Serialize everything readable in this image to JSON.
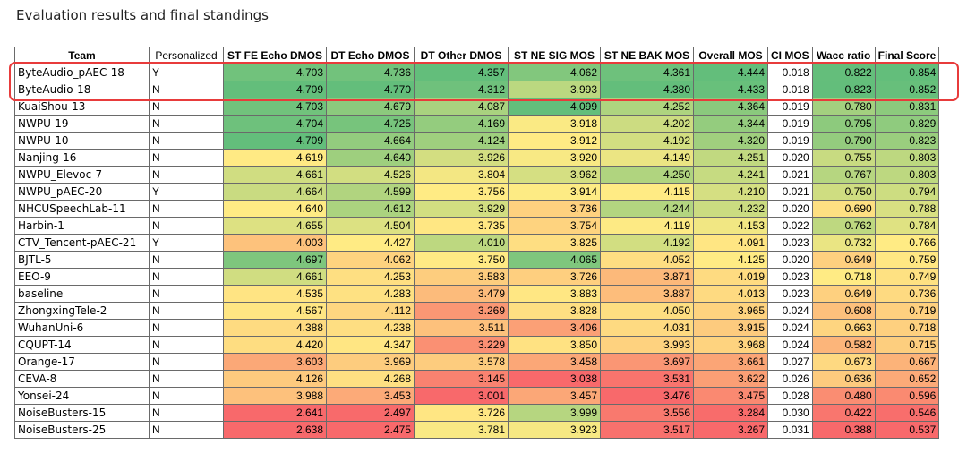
{
  "caption": "Evaluation results and final standings",
  "table": {
    "headers": [
      "Team",
      "Personalized",
      "ST FE Echo DMOS",
      "DT Echo DMOS",
      "DT Other DMOS",
      "ST NE SIG MOS",
      "ST NE BAK MOS",
      "Overall MOS",
      "CI MOS",
      "Wacc ratio",
      "Final Score"
    ],
    "rows": [
      [
        "ByteAudio_pAEC-18",
        "Y",
        "4.703",
        "4.736",
        "4.357",
        "4.062",
        "4.361",
        "4.444",
        "0.018",
        "0.822",
        "0.854"
      ],
      [
        "ByteAudio-18",
        "N",
        "4.709",
        "4.770",
        "4.312",
        "3.993",
        "4.380",
        "4.433",
        "0.018",
        "0.823",
        "0.852"
      ],
      [
        "KuaiShou-13",
        "N",
        "4.703",
        "4.679",
        "4.087",
        "4.099",
        "4.252",
        "4.364",
        "0.019",
        "0.780",
        "0.831"
      ],
      [
        "NWPU-19",
        "N",
        "4.704",
        "4.725",
        "4.169",
        "3.918",
        "4.202",
        "4.344",
        "0.019",
        "0.795",
        "0.829"
      ],
      [
        "NWPU-10",
        "N",
        "4.709",
        "4.664",
        "4.124",
        "3.912",
        "4.192",
        "4.320",
        "0.019",
        "0.790",
        "0.823"
      ],
      [
        "Nanjing-16",
        "N",
        "4.619",
        "4.640",
        "3.926",
        "3.920",
        "4.149",
        "4.251",
        "0.020",
        "0.755",
        "0.803"
      ],
      [
        "NWPU_Elevoc-7",
        "N",
        "4.661",
        "4.526",
        "3.804",
        "3.962",
        "4.250",
        "4.241",
        "0.021",
        "0.767",
        "0.803"
      ],
      [
        "NWPU_pAEC-20",
        "Y",
        "4.664",
        "4.599",
        "3.756",
        "3.914",
        "4.115",
        "4.210",
        "0.021",
        "0.750",
        "0.794"
      ],
      [
        "NHCUSpeechLab-11",
        "N",
        "4.640",
        "4.612",
        "3.929",
        "3.736",
        "4.244",
        "4.232",
        "0.020",
        "0.690",
        "0.788"
      ],
      [
        "Harbin-1",
        "N",
        "4.655",
        "4.504",
        "3.735",
        "3.754",
        "4.119",
        "4.153",
        "0.022",
        "0.762",
        "0.784"
      ],
      [
        "CTV_Tencent-pAEC-21",
        "Y",
        "4.003",
        "4.427",
        "4.010",
        "3.825",
        "4.192",
        "4.091",
        "0.023",
        "0.732",
        "0.766"
      ],
      [
        "BJTL-5",
        "N",
        "4.697",
        "4.062",
        "3.750",
        "4.065",
        "4.052",
        "4.125",
        "0.020",
        "0.649",
        "0.759"
      ],
      [
        "EEO-9",
        "N",
        "4.661",
        "4.253",
        "3.583",
        "3.726",
        "3.871",
        "4.019",
        "0.023",
        "0.718",
        "0.749"
      ],
      [
        "baseline",
        "N",
        "4.535",
        "4.283",
        "3.479",
        "3.883",
        "3.887",
        "4.013",
        "0.023",
        "0.649",
        "0.736"
      ],
      [
        "ZhongxingTele-2",
        "N",
        "4.567",
        "4.112",
        "3.269",
        "3.828",
        "4.050",
        "3.965",
        "0.024",
        "0.608",
        "0.719"
      ],
      [
        "WuhanUni-6",
        "N",
        "4.388",
        "4.238",
        "3.511",
        "3.406",
        "4.031",
        "3.915",
        "0.024",
        "0.663",
        "0.718"
      ],
      [
        "CQUPT-14",
        "N",
        "4.420",
        "4.347",
        "3.229",
        "3.850",
        "3.993",
        "3.968",
        "0.024",
        "0.582",
        "0.715"
      ],
      [
        "Orange-17",
        "N",
        "3.603",
        "3.969",
        "3.578",
        "3.458",
        "3.697",
        "3.661",
        "0.027",
        "0.673",
        "0.667"
      ],
      [
        "CEVA-8",
        "N",
        "4.126",
        "4.268",
        "3.145",
        "3.038",
        "3.531",
        "3.622",
        "0.026",
        "0.636",
        "0.652"
      ],
      [
        "Yonsei-24",
        "N",
        "3.988",
        "3.453",
        "3.001",
        "3.457",
        "3.476",
        "3.475",
        "0.028",
        "0.480",
        "0.596"
      ],
      [
        "NoiseBusters-15",
        "N",
        "2.641",
        "2.497",
        "3.726",
        "3.999",
        "3.556",
        "3.284",
        "0.030",
        "0.422",
        "0.546"
      ],
      [
        "NoiseBusters-25",
        "N",
        "2.638",
        "2.475",
        "3.781",
        "3.923",
        "3.517",
        "3.267",
        "0.031",
        "0.388",
        "0.537"
      ]
    ],
    "highlighted_rows": [
      0,
      1
    ],
    "colors": {
      "scale_low": "#f8696b",
      "scale_mid": "#ffeb84",
      "scale_high": "#63be7b",
      "highlight_border": "#e83b3b"
    }
  }
}
